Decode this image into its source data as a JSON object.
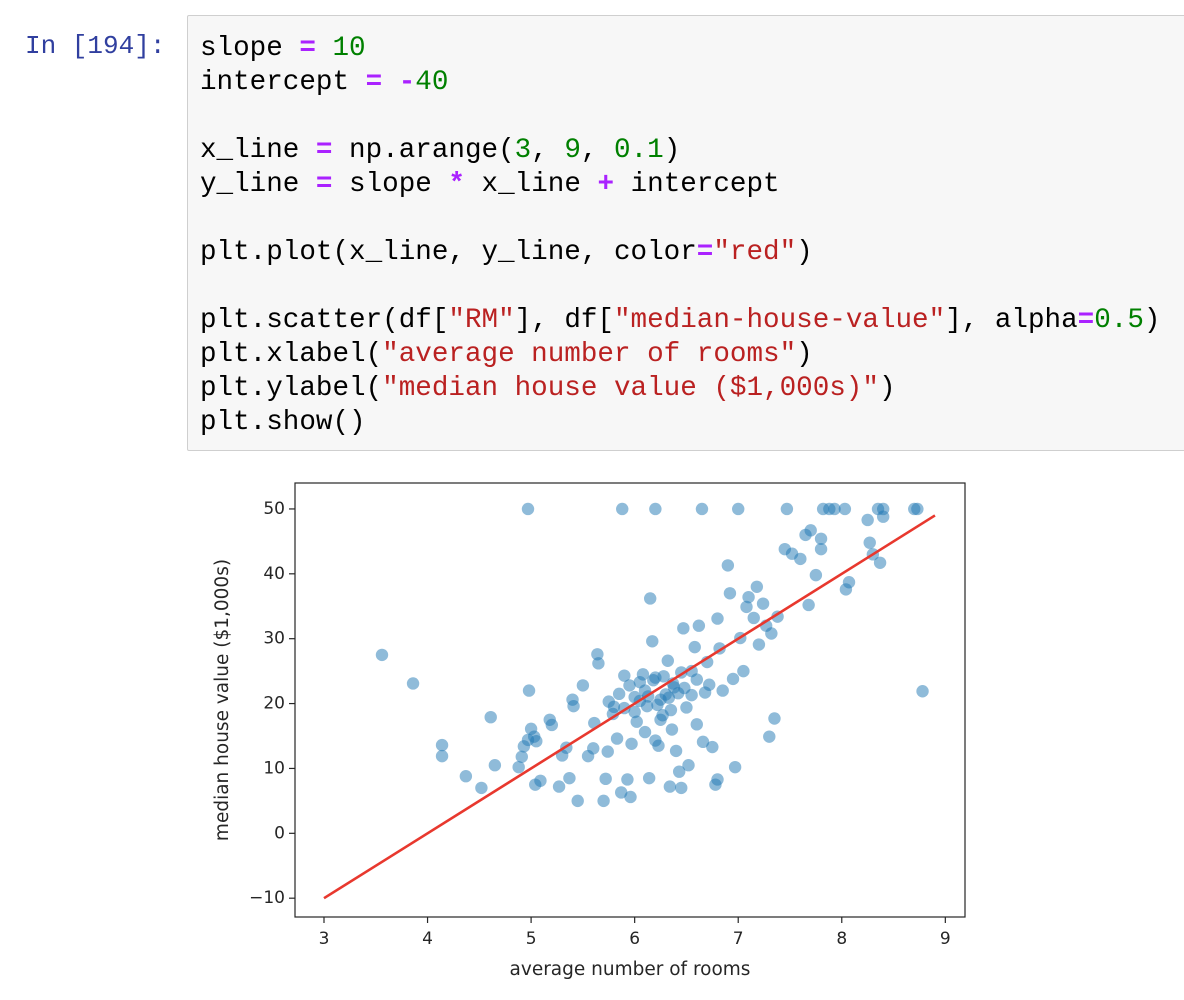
{
  "cell": {
    "prompt": "In [194]:",
    "code": [
      [
        {
          "text": "slope "
        },
        {
          "text": "=",
          "color": "#aa22ff"
        },
        {
          "text": " 10",
          "color": "#008000"
        }
      ],
      [
        {
          "text": "intercept "
        },
        {
          "text": "=",
          "color": "#aa22ff"
        },
        {
          "text": " -",
          "color": "#aa22ff"
        },
        {
          "text": "40",
          "color": "#008000"
        }
      ],
      [],
      [
        {
          "text": "x_line "
        },
        {
          "text": "=",
          "color": "#aa22ff"
        },
        {
          "text": " np.arange("
        },
        {
          "text": "3",
          "color": "#008000"
        },
        {
          "text": ", "
        },
        {
          "text": "9",
          "color": "#008000"
        },
        {
          "text": ", "
        },
        {
          "text": "0.1",
          "color": "#008000"
        },
        {
          "text": ")"
        }
      ],
      [
        {
          "text": "y_line "
        },
        {
          "text": "=",
          "color": "#aa22ff"
        },
        {
          "text": " slope "
        },
        {
          "text": "*",
          "color": "#aa22ff"
        },
        {
          "text": " x_line "
        },
        {
          "text": "+",
          "color": "#aa22ff"
        },
        {
          "text": " intercept"
        }
      ],
      [],
      [
        {
          "text": "plt.plot(x_line, y_line, color"
        },
        {
          "text": "=",
          "color": "#aa22ff"
        },
        {
          "text": "\"red\"",
          "color": "#ba2121"
        },
        {
          "text": ")"
        }
      ],
      [],
      [
        {
          "text": "plt.scatter(df["
        },
        {
          "text": "\"RM\"",
          "color": "#ba2121"
        },
        {
          "text": "], df["
        },
        {
          "text": "\"median-house-value\"",
          "color": "#ba2121"
        },
        {
          "text": "], alpha"
        },
        {
          "text": "=",
          "color": "#aa22ff"
        },
        {
          "text": "0.5",
          "color": "#008000"
        },
        {
          "text": ")"
        }
      ],
      [
        {
          "text": "plt.xlabel("
        },
        {
          "text": "\"average number of rooms\"",
          "color": "#ba2121"
        },
        {
          "text": ")"
        }
      ],
      [
        {
          "text": "plt.ylabel("
        },
        {
          "text": "\"median house value ($1,000s)\"",
          "color": "#ba2121"
        },
        {
          "text": ")"
        }
      ],
      [
        {
          "text": "plt.show()"
        }
      ]
    ]
  },
  "chart_data": {
    "type": "scatter",
    "x_label": "average number of rooms",
    "y_label": "median house value ($1,000s)",
    "xlim": [
      2.72,
      9.19
    ],
    "ylim": [
      -12.9,
      54.0
    ],
    "xticks": [
      3,
      4,
      5,
      6,
      7,
      8,
      9
    ],
    "yticks": [
      {
        "value": -10,
        "label": "−10"
      },
      0,
      10,
      20,
      30,
      40,
      50
    ],
    "series": [
      {
        "type": "scatter",
        "color": "#1f77b4",
        "x": [
          3.56,
          3.86,
          4.14,
          4.14,
          4.37,
          4.52,
          4.61,
          4.65,
          4.88,
          4.91,
          4.93,
          4.97,
          4.97,
          4.98,
          5.0,
          5.03,
          5.04,
          5.05,
          5.09,
          5.2,
          5.18,
          5.27,
          5.3,
          5.34,
          5.37,
          5.4,
          5.41,
          5.45,
          5.5,
          5.55,
          5.6,
          5.61,
          5.64,
          5.65,
          5.7,
          5.72,
          5.74,
          5.79,
          5.83,
          5.87,
          5.88,
          5.9,
          5.93,
          5.96,
          5.97,
          6.0,
          6.02,
          6.05,
          6.1,
          6.12,
          6.14,
          6.15,
          6.17,
          6.2,
          6.2,
          6.23,
          6.25,
          6.27,
          6.3,
          6.32,
          6.34,
          6.36,
          6.38,
          6.4,
          6.43,
          6.45,
          6.45,
          6.47,
          6.5,
          6.52,
          6.55,
          6.58,
          6.6,
          6.62,
          6.65,
          6.66,
          6.68,
          6.7,
          6.72,
          6.75,
          6.78,
          6.8,
          6.8,
          6.82,
          6.85,
          6.9,
          6.92,
          6.95,
          6.97,
          7.0,
          7.02,
          7.05,
          7.08,
          7.1,
          7.15,
          7.18,
          7.2,
          7.24,
          7.27,
          7.3,
          7.32,
          7.35,
          7.38,
          7.45,
          7.47,
          7.52,
          7.6,
          7.65,
          7.68,
          7.7,
          7.75,
          7.8,
          7.8,
          7.82,
          7.88,
          7.93,
          8.03,
          8.04,
          8.07,
          8.25,
          8.27,
          8.3,
          8.35,
          8.37,
          8.4,
          8.4,
          8.7,
          8.73,
          8.78,
          5.85,
          5.95,
          6.05,
          6.08,
          6.13,
          6.18,
          6.22,
          6.28,
          6.33,
          6.37,
          6.42,
          6.48,
          5.8,
          5.75,
          6.0,
          6.25,
          6.55,
          6.6,
          5.9,
          6.1,
          6.2,
          6.35
        ],
        "values": [
          27.5,
          23.1,
          13.6,
          11.9,
          8.8,
          7.0,
          17.9,
          10.5,
          10.2,
          11.8,
          13.4,
          14.4,
          50,
          22,
          16.1,
          14.9,
          7.5,
          14.2,
          8.1,
          16.7,
          17.5,
          7.2,
          12.0,
          13.2,
          8.5,
          20.6,
          19.6,
          5.0,
          22.8,
          11.9,
          13.1,
          17.0,
          27.6,
          26.2,
          5.0,
          8.4,
          12.6,
          18.4,
          14.6,
          6.3,
          50,
          19.3,
          8.3,
          5.6,
          13.8,
          21.0,
          17.2,
          23.3,
          22.0,
          19.6,
          8.5,
          36.2,
          29.6,
          50,
          24.0,
          13.5,
          20.6,
          18.2,
          21.4,
          26.6,
          7.2,
          16.0,
          22.5,
          12.7,
          9.5,
          7.0,
          24.8,
          31.6,
          19.4,
          10.5,
          25.0,
          28.7,
          16.8,
          32.0,
          50,
          14.1,
          21.7,
          26.4,
          22.9,
          13.3,
          7.5,
          8.3,
          33.1,
          28.5,
          22.0,
          41.3,
          37.0,
          23.8,
          10.2,
          50,
          30.1,
          25.0,
          34.9,
          36.4,
          33.2,
          38.0,
          29.1,
          35.4,
          32.0,
          14.9,
          30.8,
          17.7,
          33.4,
          43.8,
          50,
          43.1,
          42.3,
          46.0,
          35.2,
          46.7,
          39.8,
          45.4,
          43.8,
          50,
          50,
          50,
          50,
          37.6,
          38.7,
          48.3,
          44.8,
          43.0,
          50,
          41.7,
          48.8,
          50,
          50,
          50,
          21.9,
          21.5,
          22.8,
          20.4,
          24.5,
          21.1,
          23.6,
          19.8,
          24.2,
          20.9,
          23.1,
          21.6,
          22.4,
          19.5,
          20.3,
          18.7,
          17.5,
          21.3,
          23.7,
          24.3,
          15.6,
          14.3,
          19.0
        ]
      },
      {
        "type": "line",
        "color": "#e8382e",
        "x": [
          3,
          8.9
        ],
        "values": [
          -10,
          49
        ]
      }
    ]
  }
}
